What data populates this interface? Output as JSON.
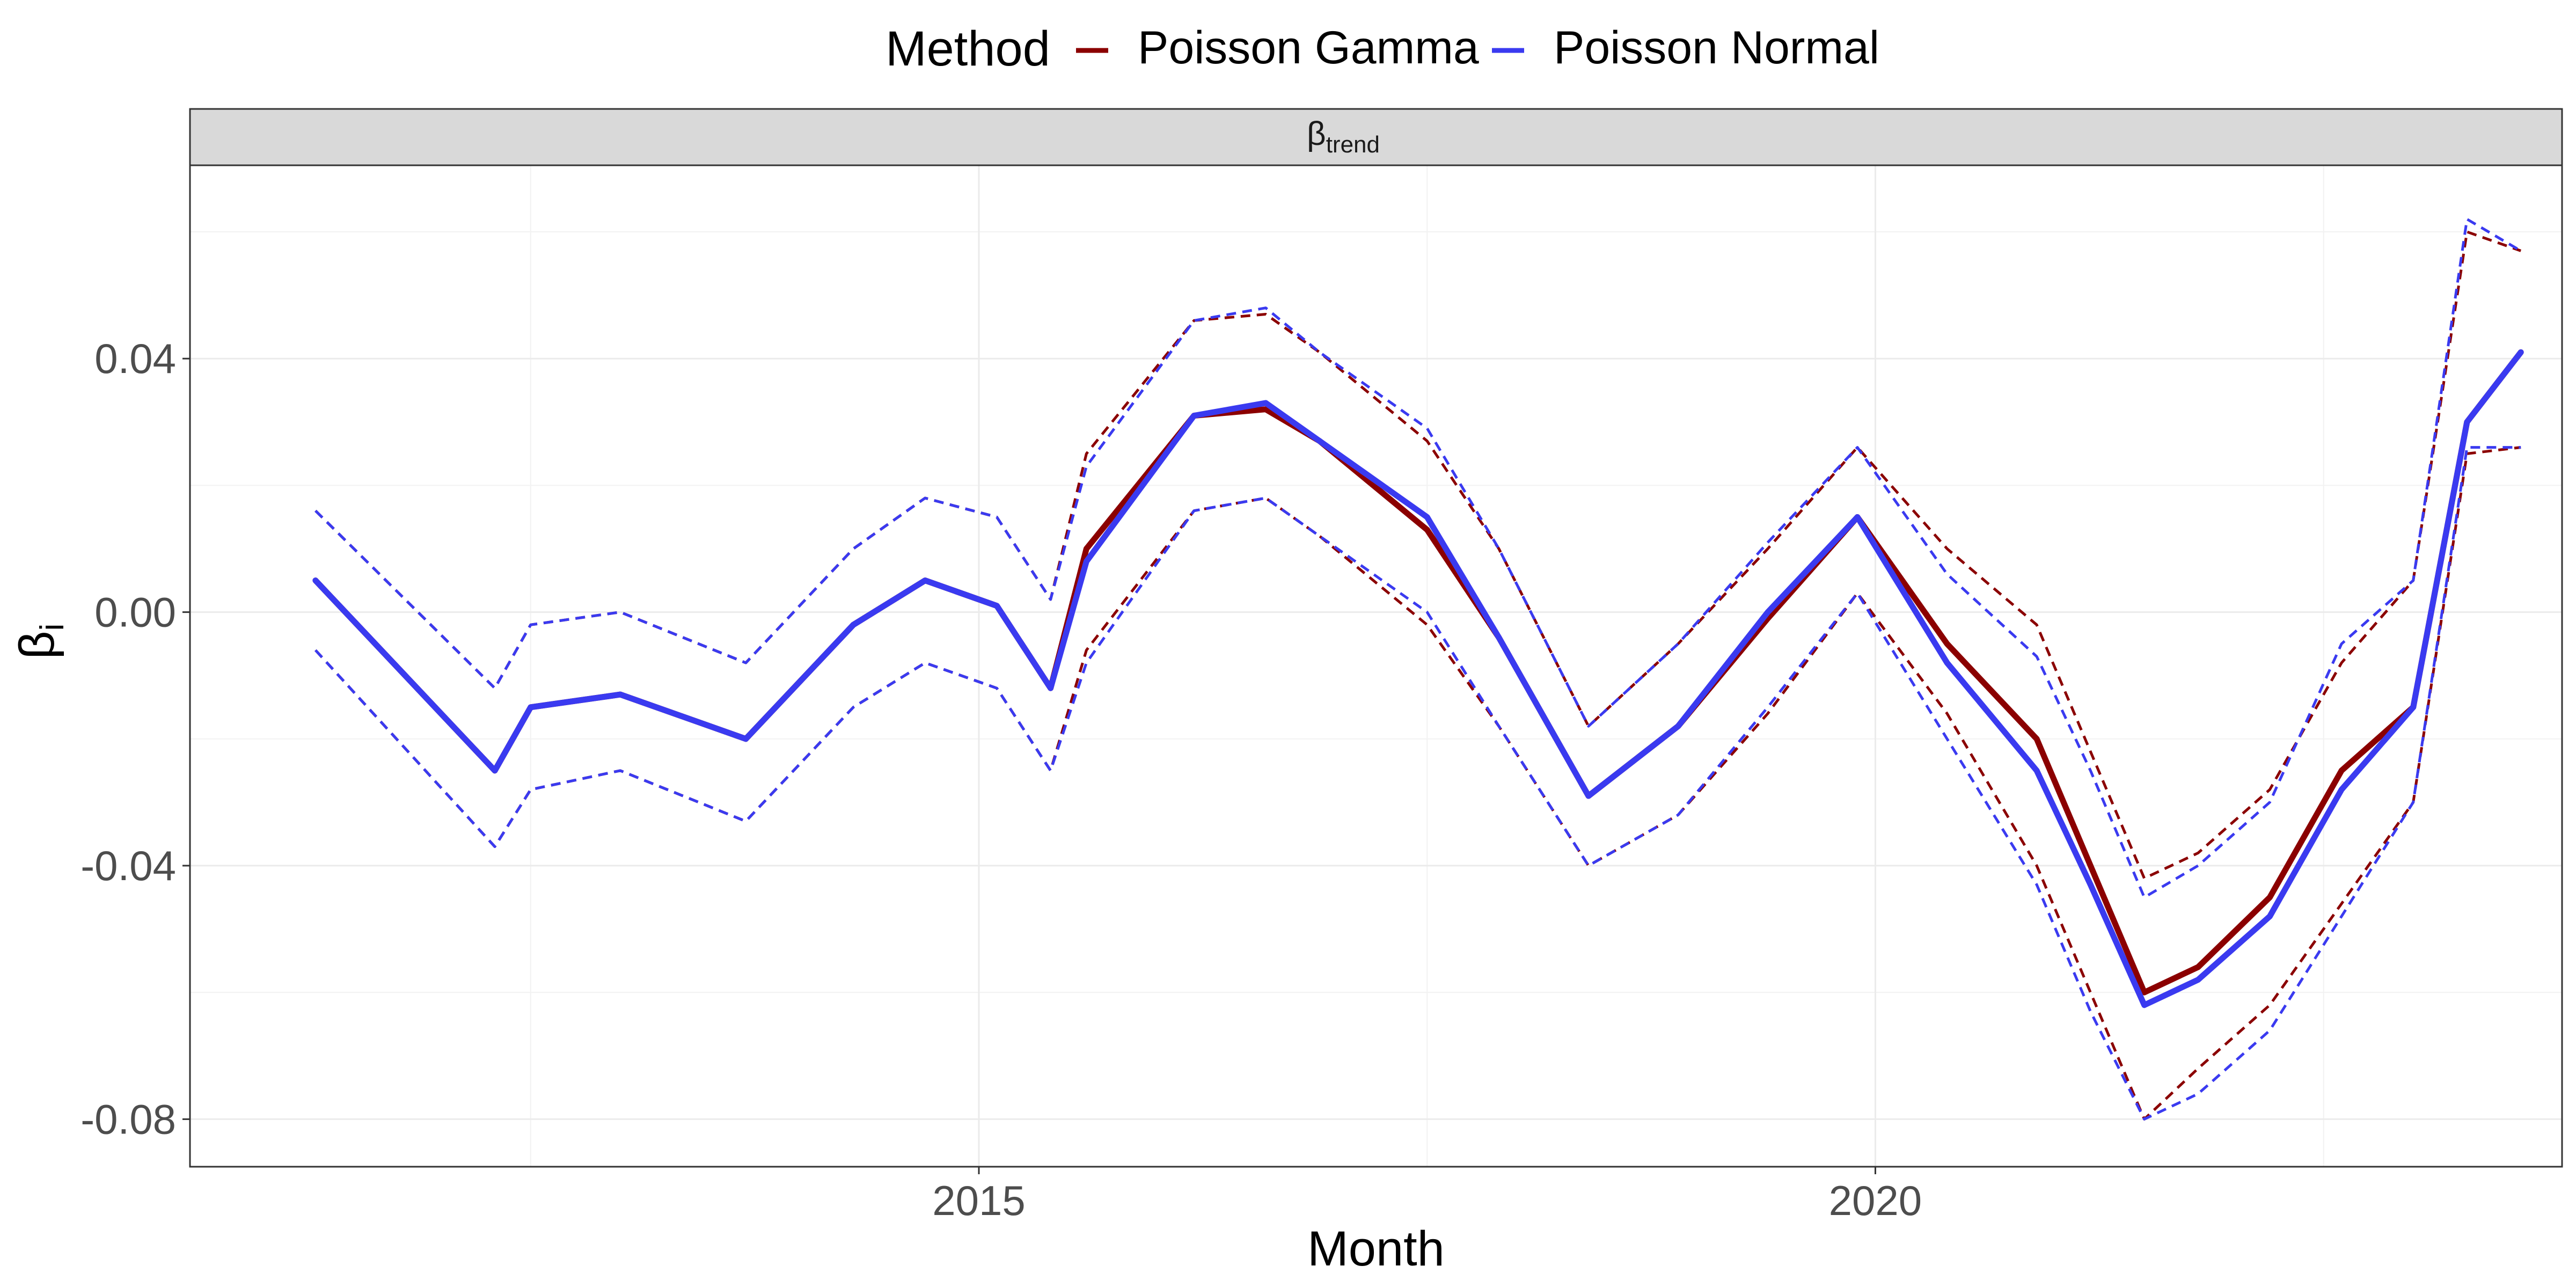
{
  "chart_data": {
    "type": "line",
    "xlabel": "Month",
    "ylabel": "β",
    "ylabel_sub": "i",
    "strip_label": "β",
    "strip_label_sub": "trend",
    "legend": {
      "title": "Method",
      "placement": "top"
    },
    "grid": true,
    "xlim": [
      2010.6,
      2023.83
    ],
    "ylim": [
      -0.0875,
      0.0705
    ],
    "x_ticks": [
      2015,
      2020
    ],
    "x_tick_labels": [
      "2015",
      "2020"
    ],
    "y_ticks": [
      -0.08,
      -0.04,
      0.0,
      0.04
    ],
    "y_tick_labels": [
      "-0.08",
      "-0.04",
      "0.00",
      "0.04"
    ],
    "colors": {
      "Poisson Gamma": "#8b0000",
      "Poisson Normal": "#3a3af0"
    },
    "x": [
      2011.3,
      2012.3,
      2012.5,
      2013.0,
      2013.7,
      2014.3,
      2014.7,
      2015.1,
      2015.4,
      2015.6,
      2016.2,
      2016.6,
      2016.9,
      2017.5,
      2017.9,
      2018.4,
      2018.9,
      2019.4,
      2019.9,
      2020.4,
      2020.9,
      2021.2,
      2021.5,
      2021.8,
      2022.2,
      2022.6,
      2023.0,
      2023.3,
      2023.6
    ],
    "series": [
      {
        "name": "Poisson Gamma",
        "values": [
          0.005,
          -0.025,
          -0.015,
          -0.013,
          -0.02,
          -0.002,
          0.005,
          0.001,
          -0.012,
          0.01,
          0.031,
          0.032,
          0.027,
          0.013,
          -0.004,
          -0.029,
          -0.018,
          -0.001,
          0.015,
          -0.005,
          -0.02,
          -0.04,
          -0.06,
          -0.056,
          -0.045,
          -0.025,
          -0.015,
          0.03,
          0.041
        ],
        "lower": [
          -0.006,
          -0.037,
          -0.028,
          -0.025,
          -0.033,
          -0.015,
          -0.008,
          -0.012,
          -0.025,
          -0.006,
          0.016,
          0.018,
          0.012,
          -0.002,
          -0.018,
          -0.04,
          -0.032,
          -0.016,
          0.003,
          -0.016,
          -0.04,
          -0.06,
          -0.08,
          -0.072,
          -0.062,
          -0.046,
          -0.03,
          0.025,
          0.026
        ],
        "upper": [
          0.016,
          -0.012,
          -0.002,
          0.0,
          -0.008,
          0.01,
          0.018,
          0.015,
          0.002,
          0.025,
          0.046,
          0.047,
          0.041,
          0.027,
          0.01,
          -0.018,
          -0.005,
          0.01,
          0.026,
          0.01,
          -0.002,
          -0.022,
          -0.042,
          -0.038,
          -0.028,
          -0.008,
          0.005,
          0.06,
          0.057
        ]
      },
      {
        "name": "Poisson Normal",
        "values": [
          0.005,
          -0.025,
          -0.015,
          -0.013,
          -0.02,
          -0.002,
          0.005,
          0.001,
          -0.012,
          0.008,
          0.031,
          0.033,
          0.027,
          0.015,
          -0.004,
          -0.029,
          -0.018,
          0.0,
          0.015,
          -0.008,
          -0.025,
          -0.043,
          -0.062,
          -0.058,
          -0.048,
          -0.028,
          -0.015,
          0.03,
          0.041
        ],
        "lower": [
          -0.006,
          -0.037,
          -0.028,
          -0.025,
          -0.033,
          -0.015,
          -0.008,
          -0.012,
          -0.025,
          -0.008,
          0.016,
          0.018,
          0.012,
          0.0,
          -0.018,
          -0.04,
          -0.032,
          -0.015,
          0.003,
          -0.02,
          -0.043,
          -0.063,
          -0.08,
          -0.076,
          -0.066,
          -0.048,
          -0.03,
          0.026,
          0.026
        ],
        "upper": [
          0.016,
          -0.012,
          -0.002,
          0.0,
          -0.008,
          0.01,
          0.018,
          0.015,
          0.002,
          0.023,
          0.046,
          0.048,
          0.041,
          0.029,
          0.01,
          -0.018,
          -0.005,
          0.011,
          0.026,
          0.006,
          -0.007,
          -0.025,
          -0.045,
          -0.04,
          -0.03,
          -0.005,
          0.005,
          0.062,
          0.057
        ]
      }
    ]
  }
}
